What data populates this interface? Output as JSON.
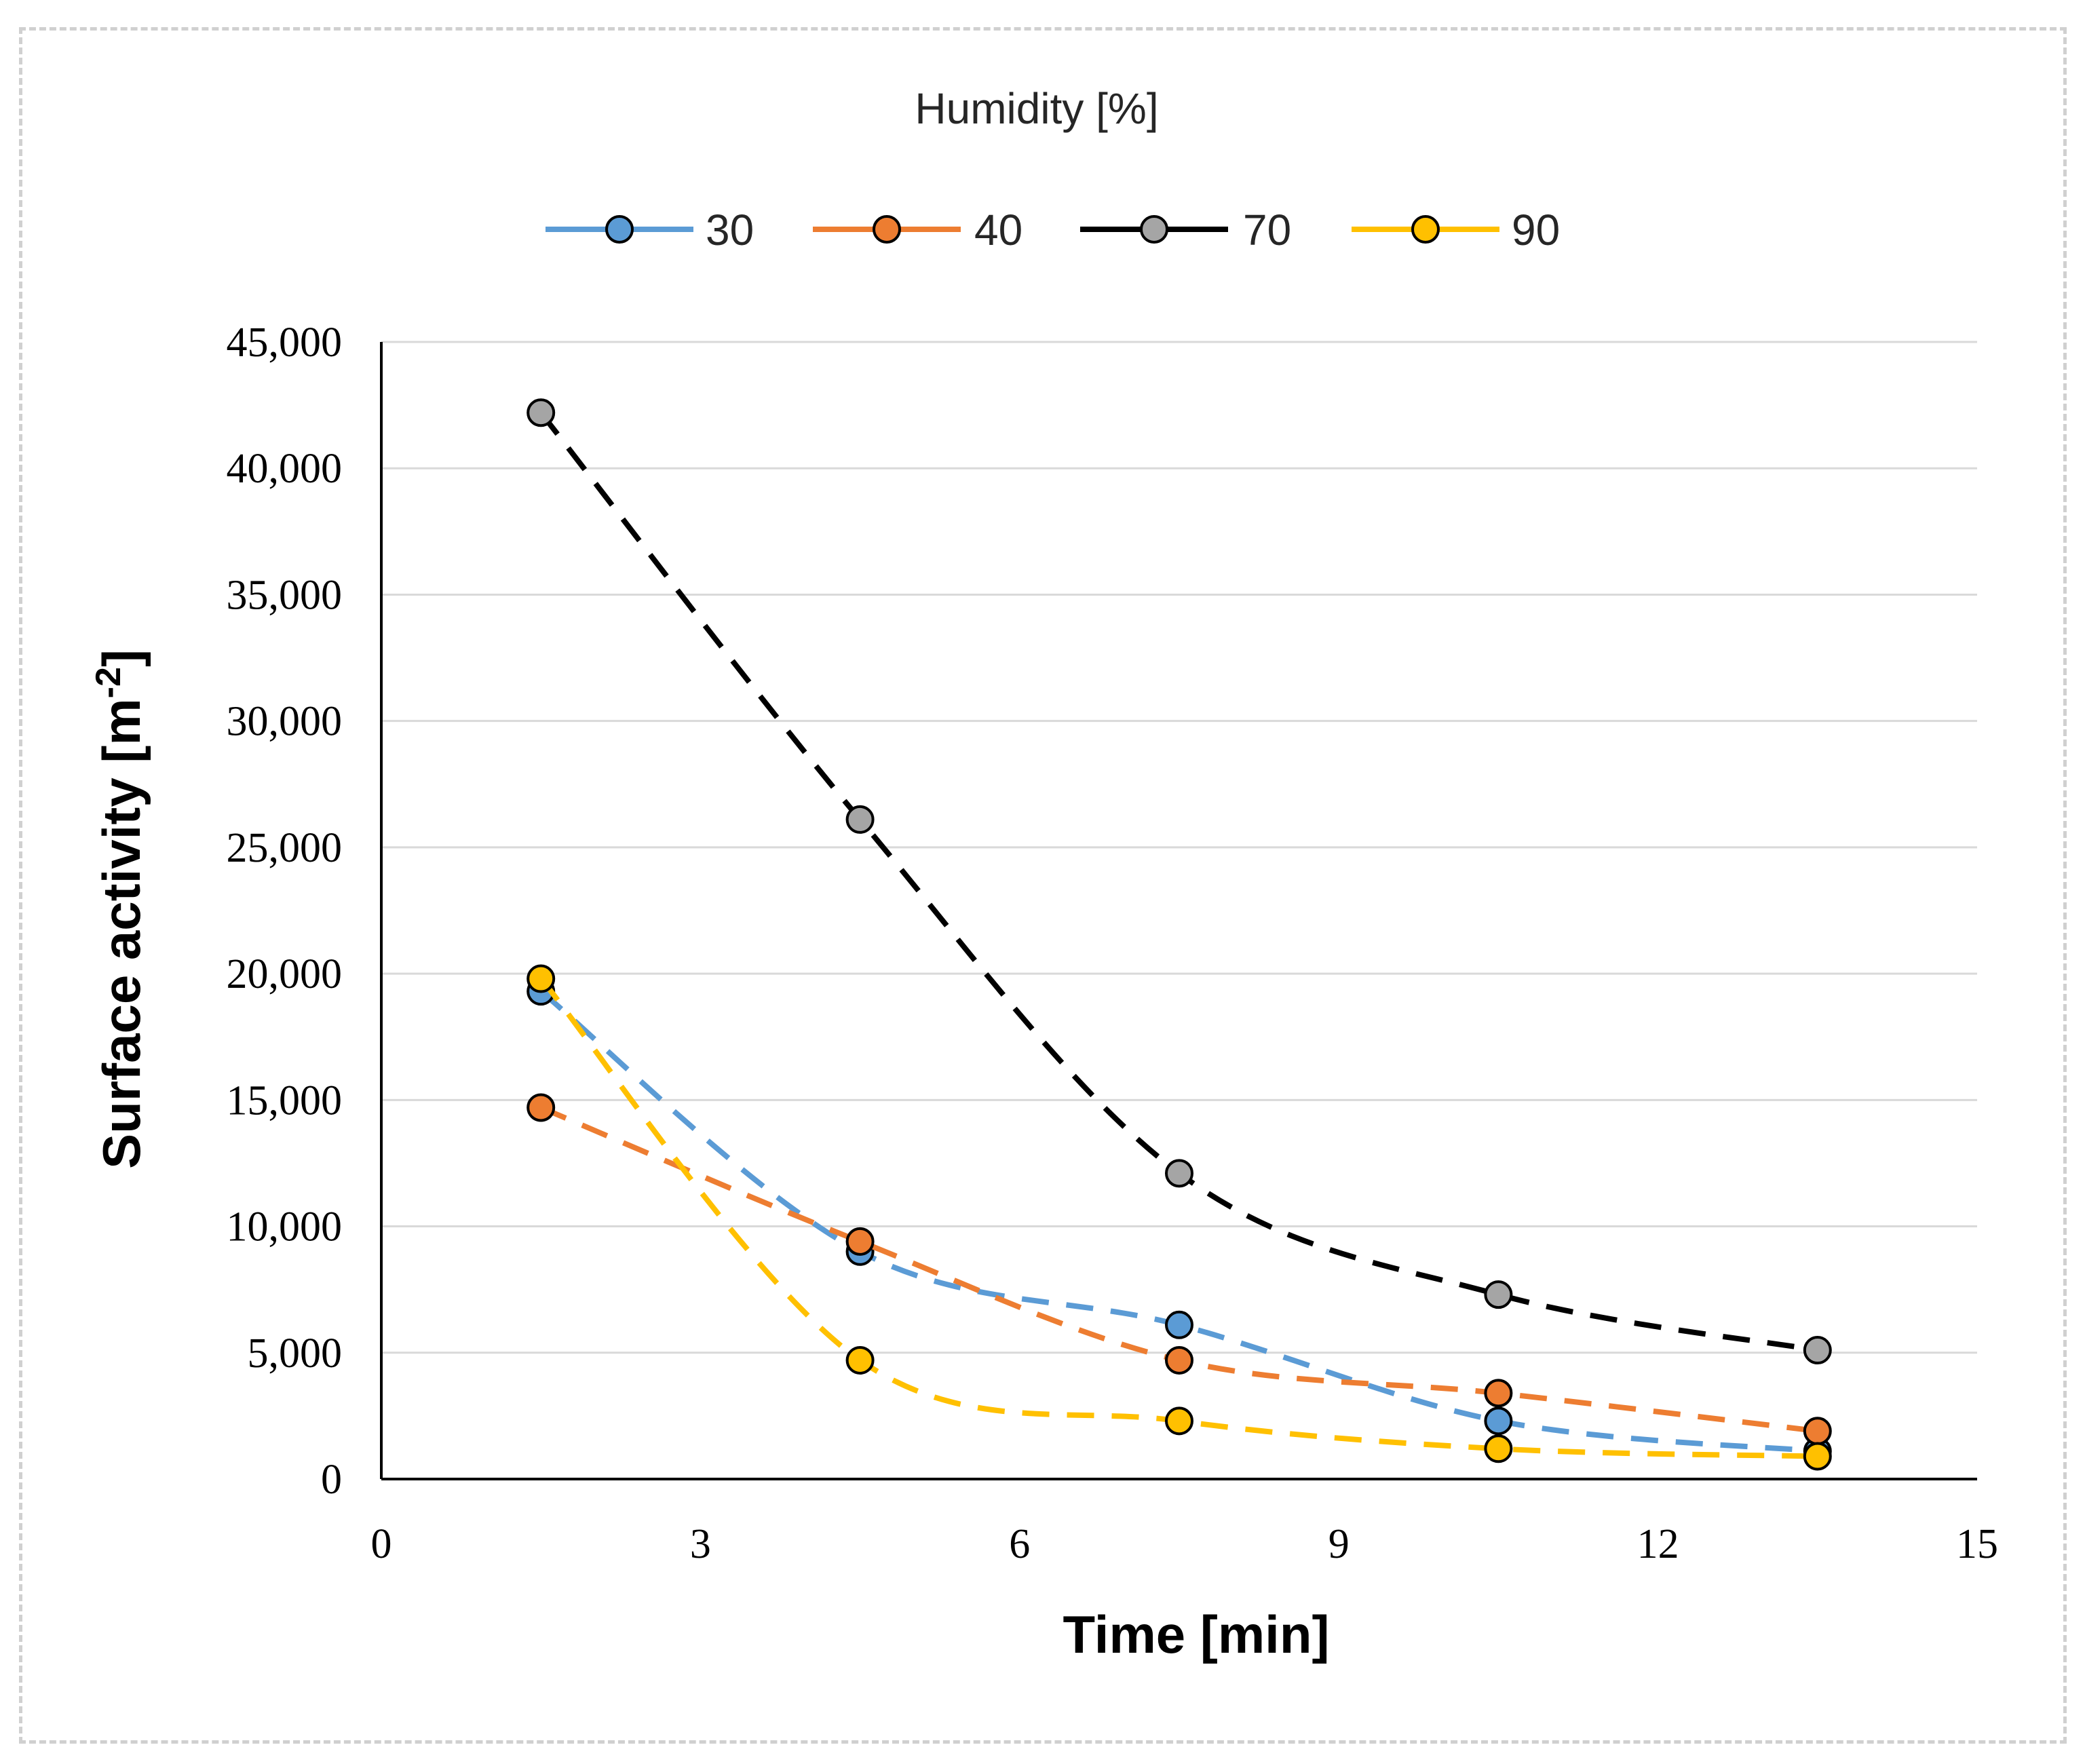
{
  "chart_data": {
    "type": "line",
    "legend_title": "Humidity  [%]",
    "legend_position": "top",
    "xlabel": "Time [min]",
    "ylabel": "Surface activity  [m",
    "ylabel_sup": "-2",
    "ylabel_end": "]",
    "xlim": [
      0,
      15
    ],
    "ylim": [
      0,
      45000
    ],
    "x_ticks": [
      0,
      3,
      6,
      9,
      12,
      15
    ],
    "x_tick_labels": [
      "0",
      "3",
      "6",
      "9",
      "12",
      "15"
    ],
    "y_ticks": [
      0,
      5000,
      10000,
      15000,
      20000,
      25000,
      30000,
      35000,
      40000,
      45000
    ],
    "y_tick_labels": [
      "0",
      "5,000",
      "10,000",
      "15,000",
      "20,000",
      "25,000",
      "30,000",
      "35,000",
      "40,000",
      "45,000"
    ],
    "grid": "horizontal",
    "x": [
      1.5,
      4.5,
      7.5,
      10.5,
      13.5
    ],
    "series": [
      {
        "name": "30",
        "color": "#5B9BD5",
        "values": [
          19300,
          9000,
          6100,
          2300,
          1100
        ]
      },
      {
        "name": "40",
        "color": "#ED7D31",
        "values": [
          14700,
          9400,
          4700,
          3400,
          1900
        ]
      },
      {
        "name": "70",
        "color": "#000000",
        "marker_color": "#A5A5A5",
        "values": [
          42200,
          26100,
          12100,
          7300,
          5100
        ]
      },
      {
        "name": "90",
        "color": "#FFC000",
        "values": [
          19800,
          4700,
          2300,
          1200,
          900
        ]
      }
    ]
  }
}
